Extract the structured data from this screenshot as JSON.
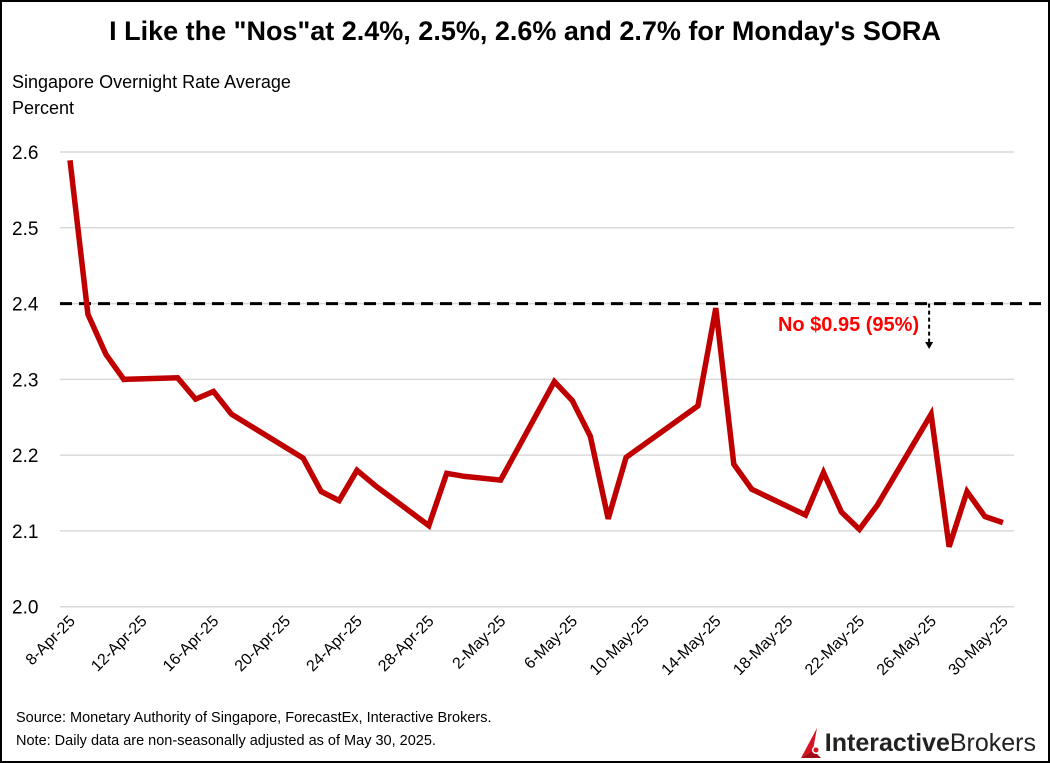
{
  "chart_data": {
    "type": "line",
    "title": "I Like the \"Nos\"at 2.4%, 2.5%, 2.6% and 2.7% for Monday's SORA",
    "ylabel_line1": "Singapore Overnight Rate Average",
    "ylabel_line2": "Percent",
    "ylim": [
      2.0,
      2.6
    ],
    "yticks": [
      "2.0",
      "2.1",
      "2.2",
      "2.3",
      "2.4",
      "2.5",
      "2.6"
    ],
    "xticks": [
      "8-Apr-25",
      "12-Apr-25",
      "16-Apr-25",
      "20-Apr-25",
      "24-Apr-25",
      "28-Apr-25",
      "2-May-25",
      "6-May-25",
      "10-May-25",
      "14-May-25",
      "18-May-25",
      "22-May-25",
      "26-May-25",
      "30-May-25"
    ],
    "grid": true,
    "series_color": "#c00000",
    "x": [
      "2025-04-08",
      "2025-04-09",
      "2025-04-10",
      "2025-04-11",
      "2025-04-14",
      "2025-04-15",
      "2025-04-16",
      "2025-04-17",
      "2025-04-21",
      "2025-04-22",
      "2025-04-23",
      "2025-04-24",
      "2025-04-25",
      "2025-04-28",
      "2025-04-29",
      "2025-04-30",
      "2025-05-02",
      "2025-05-05",
      "2025-05-06",
      "2025-05-07",
      "2025-05-08",
      "2025-05-09",
      "2025-05-13",
      "2025-05-14",
      "2025-05-15",
      "2025-05-16",
      "2025-05-19",
      "2025-05-20",
      "2025-05-21",
      "2025-05-22",
      "2025-05-23",
      "2025-05-26",
      "2025-05-27",
      "2025-05-28",
      "2025-05-29",
      "2025-05-30"
    ],
    "values": [
      2.589,
      2.386,
      2.333,
      2.3,
      2.302,
      2.274,
      2.284,
      2.254,
      2.196,
      2.152,
      2.14,
      2.18,
      2.16,
      2.107,
      2.176,
      2.172,
      2.167,
      2.297,
      2.272,
      2.225,
      2.116,
      2.197,
      2.265,
      2.394,
      2.188,
      2.155,
      2.121,
      2.177,
      2.125,
      2.102,
      2.134,
      2.254,
      2.079,
      2.152,
      2.119,
      2.111
    ],
    "reference_line": {
      "value": 2.4,
      "style": "dashed",
      "color": "#000000"
    },
    "annotation": {
      "text": "No $0.95 (95%)",
      "color": "#ff0000",
      "date": "2025-05-26"
    }
  },
  "footer": {
    "source": "Source: Monetary Authority of Singapore, ForecastEx, Interactive Brokers.",
    "note": "Note: Daily data are non-seasonally adjusted as of May 30, 2025."
  },
  "logo": {
    "part1": "Interactive",
    "part2": "Brokers",
    "color": "#d81222"
  }
}
